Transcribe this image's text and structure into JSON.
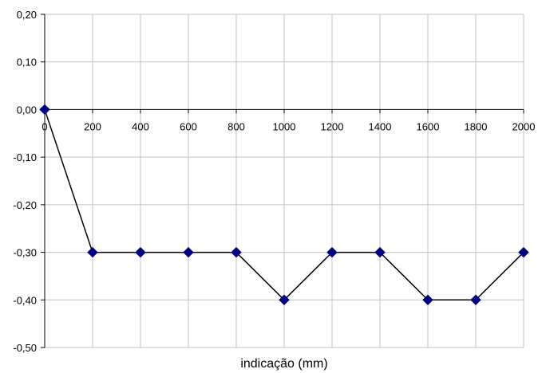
{
  "chart_data": {
    "type": "line",
    "title": "",
    "xlabel": "indicação (mm)",
    "ylabel": "",
    "x": [
      0,
      200,
      400,
      600,
      800,
      1000,
      1200,
      1400,
      1600,
      1800,
      2000
    ],
    "series": [
      {
        "values": [
          0.0,
          -0.3,
          -0.3,
          -0.3,
          -0.3,
          -0.4,
          -0.3,
          -0.3,
          -0.4,
          -0.4,
          -0.3
        ]
      }
    ],
    "xlim": [
      0,
      2000
    ],
    "ylim": [
      -0.5,
      0.2
    ],
    "x_ticks": [
      0,
      200,
      400,
      600,
      800,
      1000,
      1200,
      1400,
      1600,
      1800,
      2000
    ],
    "x_tick_labels": [
      "0",
      "200",
      "400",
      "600",
      "800",
      "1000",
      "1200",
      "1400",
      "1600",
      "1800",
      "2000"
    ],
    "y_ticks": [
      0.2,
      0.1,
      0.0,
      -0.1,
      -0.2,
      -0.3,
      -0.4,
      -0.5
    ],
    "y_tick_labels": [
      "0,20",
      "0,10",
      "0,00",
      "-0,10",
      "-0,20",
      "-0,30",
      "-0,40",
      "-0,50"
    ],
    "grid": true,
    "legend": "none",
    "colors": {
      "line": "#000000",
      "marker": "#000080",
      "grid": "#c0c0c0",
      "axis": "#000000"
    },
    "marker": "diamond"
  }
}
